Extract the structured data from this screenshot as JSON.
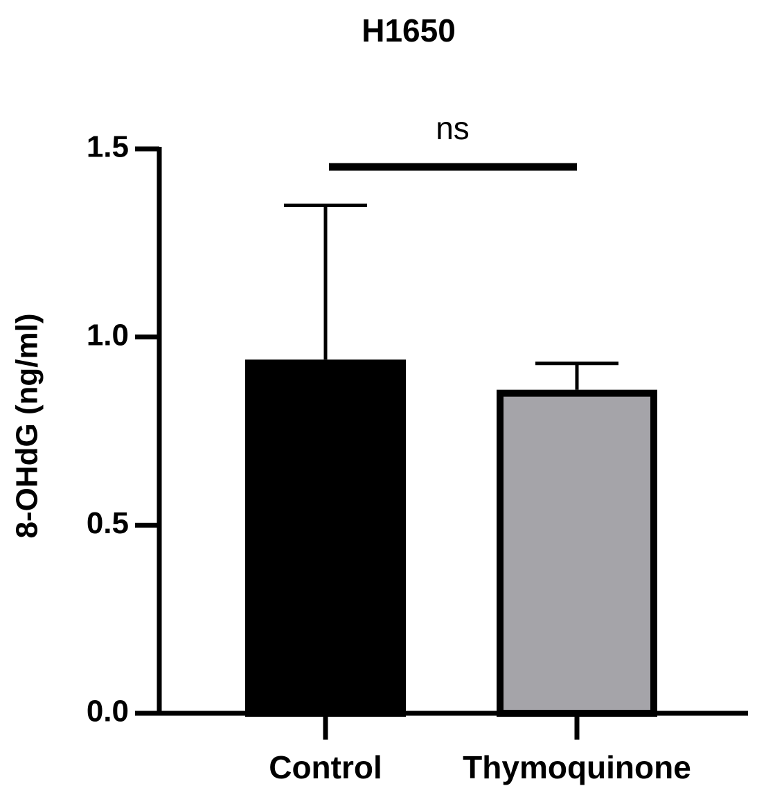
{
  "chart_data": {
    "type": "bar",
    "title": "H1650",
    "y_label": "8-OHdG (ng/ml)",
    "categories": [
      "Control",
      "Thymoquinone"
    ],
    "values": [
      0.94,
      0.86
    ],
    "errors": [
      0.41,
      0.07
    ],
    "colors": [
      "#000000",
      "#a5a4a9"
    ],
    "edge_color": "#000000",
    "ylim": [
      0,
      1.5
    ],
    "yticks": [
      {
        "value": 0,
        "label": "0.0"
      },
      0.5,
      {
        "value": 1,
        "label": "1.0"
      },
      1.5
    ],
    "annotation": "ns",
    "grid": false
  }
}
